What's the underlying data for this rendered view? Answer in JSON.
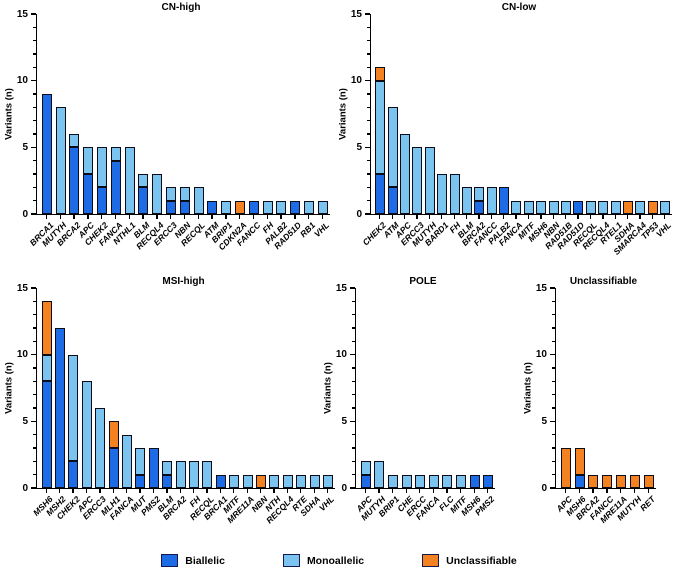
{
  "figure": {
    "legend": {
      "items": [
        {
          "key": "biallelic",
          "label": "Biallelic",
          "color": "#1e6be6"
        },
        {
          "key": "monoallelic",
          "label": "Monoallelic",
          "color": "#7cc4f0"
        },
        {
          "key": "unclassifiable",
          "label": "Unclassifiable",
          "color": "#f58220"
        }
      ]
    }
  },
  "colors": {
    "biallelic": "#1e6be6",
    "monoallelic": "#7cc4f0",
    "unclassifiable": "#f58220",
    "bar_border": "#0d0d1a"
  },
  "chart_data": [
    {
      "type": "bar",
      "stacked": true,
      "title": "CN-high",
      "ylabel": "Variants (n)",
      "ylim": [
        0,
        15
      ],
      "yticks": [
        0,
        5,
        10,
        15
      ],
      "minor_tick_step": 1,
      "categories": [
        "BRCA1",
        "MUTYH",
        "BRCA2",
        "APC",
        "CHEK2",
        "FANCA",
        "NTHL1",
        "BLM",
        "RECQL4",
        "ERCC3",
        "NBN",
        "RECQL",
        "ATM",
        "BRIP1",
        "CDKN2A",
        "FANCC",
        "FH",
        "PALB2",
        "RAD51D",
        "RB1",
        "VHL"
      ],
      "series": [
        {
          "name": "Biallelic",
          "key": "biallelic",
          "values": [
            9,
            0,
            5,
            3,
            2,
            4,
            0,
            2,
            0,
            1,
            1,
            0,
            1,
            0,
            0,
            1,
            0,
            0,
            1,
            0,
            0
          ]
        },
        {
          "name": "Monoallelic",
          "key": "monoallelic",
          "values": [
            0,
            8,
            1,
            2,
            3,
            1,
            5,
            1,
            3,
            1,
            1,
            2,
            0,
            1,
            0,
            0,
            1,
            1,
            0,
            1,
            1
          ]
        },
        {
          "name": "Unclassifiable",
          "key": "unclassifiable",
          "values": [
            0,
            0,
            0,
            0,
            0,
            0,
            0,
            0,
            0,
            0,
            0,
            0,
            0,
            0,
            1,
            0,
            0,
            0,
            0,
            0,
            0
          ]
        }
      ]
    },
    {
      "type": "bar",
      "stacked": true,
      "title": "CN-low",
      "ylabel": "Variants (n)",
      "ylim": [
        0,
        15
      ],
      "yticks": [
        0,
        5,
        10,
        15
      ],
      "minor_tick_step": 1,
      "categories": [
        "CHEK2",
        "ATM",
        "APC",
        "ERCC3",
        "MUTYH",
        "BARD1",
        "FH",
        "BLM",
        "BRCA2",
        "FANCC",
        "PALB2",
        "FANCA",
        "MITF",
        "MSH6",
        "NBN",
        "RAD51B",
        "RAD51D",
        "RECQL",
        "RECQL4",
        "RTEL1",
        "SDHA",
        "SMARCA4",
        "TP53",
        "VHL"
      ],
      "series": [
        {
          "name": "Biallelic",
          "key": "biallelic",
          "values": [
            3,
            2,
            0,
            0,
            0,
            0,
            0,
            0,
            1,
            0,
            2,
            0,
            0,
            0,
            0,
            0,
            1,
            0,
            0,
            0,
            0,
            0,
            0,
            0
          ]
        },
        {
          "name": "Monoallelic",
          "key": "monoallelic",
          "values": [
            7,
            6,
            6,
            5,
            5,
            3,
            3,
            2,
            1,
            2,
            0,
            1,
            1,
            1,
            1,
            1,
            0,
            1,
            1,
            1,
            0,
            1,
            0,
            1
          ]
        },
        {
          "name": "Unclassifiable",
          "key": "unclassifiable",
          "values": [
            1,
            0,
            0,
            0,
            0,
            0,
            0,
            0,
            0,
            0,
            0,
            0,
            0,
            0,
            0,
            0,
            0,
            0,
            0,
            0,
            1,
            0,
            1,
            0
          ]
        }
      ]
    },
    {
      "type": "bar",
      "stacked": true,
      "title": "MSI-high",
      "ylabel": "Variants (n)",
      "ylim": [
        0,
        15
      ],
      "yticks": [
        0,
        5,
        10,
        15
      ],
      "minor_tick_step": 1,
      "categories": [
        "MSH6",
        "MSH2",
        "CHEK2",
        "APC",
        "ERCC3",
        "MLH1",
        "FANCA",
        "MUT",
        "PMS2",
        "BLM",
        "BRCA2",
        "FH",
        "RECQL",
        "BRCA1",
        "MITF",
        "MRE11A",
        "NBN",
        "NTH",
        "RECQL4",
        "RTE",
        "SDHA",
        "VHL"
      ],
      "series": [
        {
          "name": "Biallelic",
          "key": "biallelic",
          "values": [
            8,
            12,
            2,
            0,
            0,
            3,
            0,
            1,
            3,
            1,
            0,
            0,
            0,
            1,
            0,
            0,
            0,
            0,
            0,
            0,
            0,
            0
          ]
        },
        {
          "name": "Monoallelic",
          "key": "monoallelic",
          "values": [
            2,
            0,
            8,
            8,
            6,
            0,
            4,
            2,
            0,
            1,
            2,
            2,
            2,
            0,
            1,
            1,
            0,
            1,
            1,
            1,
            1,
            1
          ]
        },
        {
          "name": "Unclassifiable",
          "key": "unclassifiable",
          "values": [
            4,
            0,
            0,
            0,
            0,
            2,
            0,
            0,
            0,
            0,
            0,
            0,
            0,
            0,
            0,
            0,
            1,
            0,
            0,
            0,
            0,
            0
          ]
        }
      ]
    },
    {
      "type": "bar",
      "stacked": true,
      "title": "POLE",
      "ylabel": "Variants (n)",
      "ylim": [
        0,
        15
      ],
      "yticks": [
        0,
        5,
        10,
        15
      ],
      "minor_tick_step": 1,
      "categories": [
        "APC",
        "MUTYH",
        "BRIP1",
        "CHE",
        "ERCC",
        "FANCA",
        "FLC",
        "MITF",
        "MSH6",
        "PMS2"
      ],
      "series": [
        {
          "name": "Biallelic",
          "key": "biallelic",
          "values": [
            1,
            0,
            0,
            0,
            0,
            0,
            0,
            0,
            1,
            1
          ]
        },
        {
          "name": "Monoallelic",
          "key": "monoallelic",
          "values": [
            1,
            2,
            1,
            1,
            1,
            1,
            1,
            1,
            0,
            0
          ]
        },
        {
          "name": "Unclassifiable",
          "key": "unclassifiable",
          "values": [
            0,
            0,
            0,
            0,
            0,
            0,
            0,
            0,
            0,
            0
          ]
        }
      ]
    },
    {
      "type": "bar",
      "stacked": true,
      "title": "Unclassifiable",
      "ylabel": "Variants (n)",
      "ylim": [
        0,
        15
      ],
      "yticks": [
        0,
        5,
        10,
        15
      ],
      "minor_tick_step": 1,
      "categories": [
        "APC",
        "MSH6",
        "BRCA2",
        "FANCC",
        "MRE11A",
        "MUTYH",
        "RET"
      ],
      "series": [
        {
          "name": "Biallelic",
          "key": "biallelic",
          "values": [
            0,
            1,
            0,
            0,
            0,
            0,
            0
          ]
        },
        {
          "name": "Monoallelic",
          "key": "monoallelic",
          "values": [
            0,
            0,
            0,
            0,
            0,
            0,
            0
          ]
        },
        {
          "name": "Unclassifiable",
          "key": "unclassifiable",
          "values": [
            3,
            2,
            1,
            1,
            1,
            1,
            1
          ]
        }
      ]
    }
  ]
}
